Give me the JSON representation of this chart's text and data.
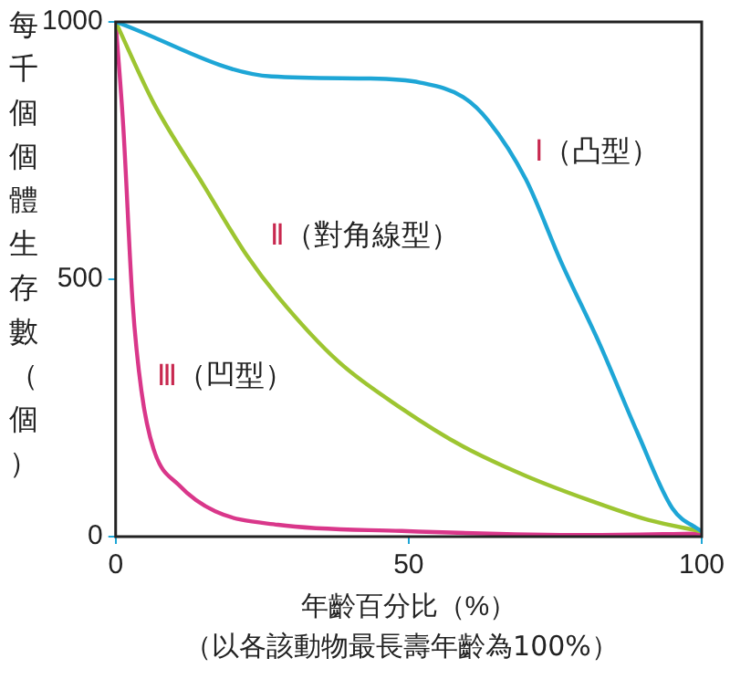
{
  "chart_data": {
    "type": "line",
    "xlabel": "年齡百分比（%）",
    "ylabel": "每千個個體生存數（個）",
    "xlim": [
      0,
      100
    ],
    "xticks": [
      0,
      50,
      100
    ],
    "ylim": [
      0,
      1000
    ],
    "yticks": [
      0,
      500,
      1000
    ],
    "grid": false,
    "legend": false,
    "marker": "none",
    "line_style": "solid",
    "series": [
      {
        "name": "Ⅰ（凸型）",
        "color": "#1ea6d6",
        "x": [
          0,
          26.6,
          43.5,
          52,
          59.3,
          63.6,
          70,
          76,
          82.6,
          89,
          95,
          100
        ],
        "values": [
          1000,
          894,
          890,
          882,
          854,
          808,
          694,
          534,
          374,
          203,
          55,
          10
        ]
      },
      {
        "name": "Ⅱ（對角線型）",
        "color": "#9dc531",
        "x": [
          0,
          6.5,
          15,
          22.4,
          27.7,
          38,
          48.8,
          59.3,
          70,
          80.5,
          91,
          100
        ],
        "values": [
          1000,
          842,
          683,
          546,
          466,
          340,
          249,
          175,
          118,
          72,
          32,
          10
        ]
      },
      {
        "name": "Ⅲ（凹型）",
        "color": "#d9378a",
        "x": [
          0,
          1.3,
          2.9,
          4.4,
          6.5,
          10.8,
          17,
          27.7,
          48.8,
          80.5,
          100
        ],
        "values": [
          1000,
          797,
          454,
          283,
          169,
          100,
          49,
          23,
          11,
          3,
          6
        ]
      }
    ],
    "annotations": [
      "（以各該動物最長壽年齡為100%）"
    ]
  }
}
